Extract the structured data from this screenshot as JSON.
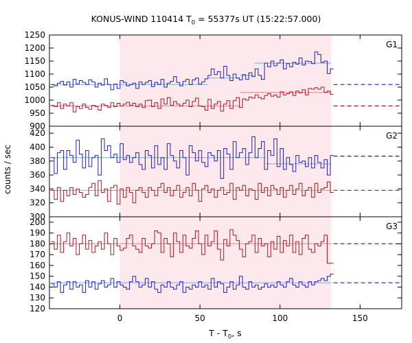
{
  "chart_data": {
    "type": "line",
    "title": {
      "pre": "KONUS-WIND 110414 T",
      "sub": "0",
      "post": " = 55377s UT (15:22:57.000)"
    },
    "xlabel": {
      "pre": "T - T",
      "sub": "0",
      "post": ", s"
    },
    "ylabel": "counts / sec",
    "xlim": [
      -44,
      176
    ],
    "x_ticks": [
      0,
      50,
      100,
      150
    ],
    "x_tick_labels": [
      "0",
      "50",
      "100",
      "150"
    ],
    "highlight_interval": [
      0,
      132
    ],
    "highlight_color": "#fde9ec",
    "grid": false,
    "panels": [
      {
        "name": "G1",
        "ylim": [
          900,
          1250
        ],
        "y_ticks": [
          900,
          950,
          1000,
          1050,
          1100,
          1150,
          1200,
          1250
        ],
        "y_tick_labels": [
          "900",
          "950",
          "1000",
          "1050",
          "1100",
          "1150",
          "1200",
          "1250"
        ],
        "series": [
          {
            "color": "#1f1fb4",
            "values": [
              1060,
              1055,
              1065,
              1072,
              1058,
              1070,
              1050,
              1080,
              1062,
              1075,
              1068,
              1060,
              1078,
              1070,
              1050,
              1065,
              1058,
              1082,
              1060,
              1040,
              1062,
              1045,
              1075,
              1068,
              1055,
              1060,
              1065,
              1045,
              1070,
              1060,
              1068,
              1075,
              1052,
              1068,
              1060,
              1080,
              1050,
              1065,
              1072,
              1090,
              1068,
              1055,
              1072,
              1080,
              1060,
              1078,
              1085,
              1062,
              1070,
              1082,
              1095,
              1120,
              1098,
              1110,
              1085,
              1130,
              1095,
              1075,
              1100,
              1085,
              1078,
              1098,
              1080,
              1105,
              1090,
              1120,
              1095,
              1080,
              1142,
              1128,
              1150,
              1132,
              1142,
              1155,
              1120,
              1140,
              1128,
              1145,
              1138,
              1162,
              1135,
              1150,
              1148,
              1140,
              1185,
              1175,
              1145,
              1150,
              1102,
              1120
            ],
            "mean": 1060,
            "fit": [
              {
                "x": [
                  -44,
                  55
                ],
                "y": 1060
              },
              {
                "x": [
                  55,
                  75
                ],
                "y": 1085
              },
              {
                "x": [
                  75,
                  84
                ],
                "y": 1095
              },
              {
                "x": [
                  84,
                  132
                ],
                "y": 1142
              }
            ],
            "fit_color": "#7ab6ee"
          },
          {
            "color": "#a31a26",
            "values": [
              980,
              975,
              990,
              968,
              985,
              978,
              990,
              955,
              975,
              968,
              985,
              972,
              965,
              980,
              975,
              962,
              985,
              980,
              972,
              990,
              975,
              988,
              978,
              985,
              992,
              980,
              988,
              975,
              985,
              972,
              998,
              1000,
              975,
              990,
              968,
              1005,
              985,
              1010,
              980,
              995,
              985,
              978,
              988,
              1000,
              975,
              995,
              1008,
              978,
              975,
              962,
              1003,
              968,
              985,
              995,
              958,
              985,
              998,
              968,
              998,
              1010,
              972,
              1005,
              1000,
              1012,
              1008,
              1020,
              1010,
              1005,
              1018,
              1025,
              1015,
              1020,
              1012,
              1032,
              1020,
              1025,
              1032,
              1018,
              1035,
              1028,
              1040,
              1020,
              1045,
              1042,
              1048,
              1042,
              1050,
              1030,
              1035,
              1022
            ],
            "mean": 978,
            "fit": [
              {
                "x": [
                  -44,
                  75
                ],
                "y": 978
              },
              {
                "x": [
                  75,
                  132
                ],
                "y": 1030
              }
            ],
            "fit_color": "#f08fa6"
          }
        ]
      },
      {
        "name": "G2",
        "ylim": [
          300,
          430
        ],
        "y_ticks": [
          300,
          320,
          340,
          360,
          380,
          400,
          420
        ],
        "y_tick_labels": [
          "300",
          "320",
          "340",
          "360",
          "380",
          "400",
          "420"
        ],
        "series": [
          {
            "color": "#1f1fb4",
            "values": [
              385,
              362,
              392,
              395,
              368,
              395,
              388,
              378,
              410,
              390,
              370,
              395,
              372,
              385,
              388,
              360,
              412,
              395,
              402,
              385,
              390,
              378,
              405,
              382,
              388,
              378,
              385,
              392,
              375,
              368,
              395,
              388,
              370,
              402,
              375,
              385,
              368,
              405,
              388,
              380,
              370,
              395,
              385,
              360,
              402,
              392,
              380,
              395,
              378,
              372,
              392,
              388,
              380,
              395,
              355,
              398,
              390,
              368,
              408,
              385,
              392,
              398,
              375,
              392,
              415,
              385,
              398,
              408,
              368,
              395,
              388,
              412,
              372,
              398,
              368,
              385,
              375,
              365,
              388,
              378,
              380,
              372,
              385,
              370,
              388,
              378,
              370,
              382,
              360,
              388
            ],
            "mean": 387,
            "fit": [
              {
                "x": [
                  -44,
                  91
                ],
                "y": 385
              },
              {
                "x": [
                  91,
                  132
                ],
                "y": 376
              }
            ],
            "fit_color": "#7ab6ee"
          },
          {
            "color": "#a31a26",
            "values": [
              338,
              325,
              342,
              322,
              338,
              330,
              342,
              332,
              340,
              335,
              328,
              332,
              342,
              348,
              330,
              352,
              335,
              340,
              322,
              342,
              345,
              318,
              340,
              328,
              342,
              335,
              320,
              338,
              342,
              335,
              328,
              342,
              338,
              330,
              342,
              348,
              335,
              342,
              330,
              338,
              345,
              328,
              335,
              342,
              330,
              348,
              338,
              322,
              340,
              345,
              335,
              340,
              328,
              338,
              342,
              332,
              335,
              348,
              325,
              342,
              338,
              345,
              330,
              340,
              338,
              325,
              348,
              335,
              342,
              330,
              345,
              340,
              332,
              342,
              328,
              338,
              345,
              332,
              340,
              348,
              330,
              338,
              342,
              328,
              348,
              335,
              340,
              342,
              350,
              335
            ],
            "mean": 338,
            "fit": [
              {
                "x": [
                  -44,
                  132
                ],
                "y": 338
              }
            ],
            "fit_color": "#f08fa6"
          }
        ]
      },
      {
        "name": "G3",
        "ylim": [
          120,
          205
        ],
        "y_ticks": [
          120,
          130,
          140,
          150,
          160,
          170,
          180,
          190,
          200
        ],
        "y_tick_labels": [
          "120",
          "130",
          "140",
          "150",
          "160",
          "170",
          "180",
          "190",
          "200"
        ],
        "series": [
          {
            "color": "#a31a26",
            "values": [
              182,
              175,
              188,
              172,
              182,
              190,
              178,
              185,
              170,
              180,
              188,
              175,
              183,
              172,
              178,
              182,
              175,
              190,
              180,
              170,
              185,
              178,
              174,
              176,
              185,
              188,
              178,
              175,
              172,
              185,
              178,
              176,
              180,
              192,
              190,
              172,
              185,
              180,
              168,
              190,
              182,
              172,
              188,
              178,
              176,
              185,
              192,
              180,
              170,
              188,
              178,
              182,
              192,
              175,
              165,
              184,
              178,
              193,
              188,
              183,
              175,
              168,
              180,
              182,
              188,
              172,
              185,
              178,
              180,
              168,
              182,
              175,
              187,
              172,
              183,
              178,
              188,
              172,
              182,
              170,
              185,
              188,
              175,
              172,
              180,
              178,
              182,
              188,
              162,
              162
            ],
            "mean": 180,
            "fit": [
              {
                "x": [
                  -44,
                  132
                ],
                "y": 180
              }
            ],
            "fit_color": "#f08fa6"
          },
          {
            "color": "#1f1fb4",
            "values": [
              143,
              140,
              145,
              135,
              142,
              145,
              138,
              145,
              140,
              142,
              135,
              146,
              140,
              145,
              138,
              143,
              146,
              140,
              142,
              148,
              140,
              145,
              142,
              140,
              138,
              145,
              150,
              145,
              140,
              142,
              148,
              140,
              145,
              138,
              135,
              142,
              140,
              145,
              140,
              138,
              142,
              145,
              135,
              140,
              138,
              142,
              140,
              145,
              140,
              142,
              138,
              148,
              140,
              145,
              143,
              135,
              140,
              145,
              138,
              142,
              150,
              140,
              138,
              145,
              140,
              142,
              138,
              140,
              143,
              140,
              142,
              140,
              145,
              142,
              140,
              145,
              148,
              142,
              140,
              145,
              142,
              140,
              145,
              142,
              145,
              146,
              148,
              146,
              150,
              152
            ],
            "mean": 144,
            "fit": [
              {
                "x": [
                  -44,
                  132
                ],
                "y": 144
              }
            ],
            "fit_color": "#7ab6ee"
          }
        ]
      }
    ]
  }
}
